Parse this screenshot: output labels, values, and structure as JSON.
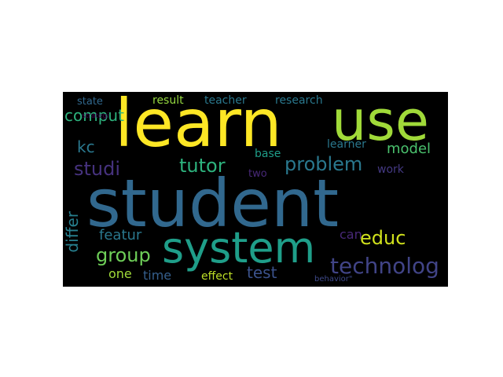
{
  "background": "#000000",
  "words": [
    {
      "id": "student",
      "text": "student",
      "color": "#31688e"
    },
    {
      "id": "learn",
      "text": "learn",
      "color": "#fde725"
    },
    {
      "id": "use",
      "text": "use",
      "color": "#a0da39"
    },
    {
      "id": "system",
      "text": "system",
      "color": "#1f9e89"
    },
    {
      "id": "technolog",
      "text": "technolog",
      "color": "#414487"
    },
    {
      "id": "problem",
      "text": "problem",
      "color": "#2a788e"
    },
    {
      "id": "tutor",
      "text": "tutor",
      "color": "#2db27d"
    },
    {
      "id": "studi",
      "text": "studi",
      "color": "#46327e"
    },
    {
      "id": "group",
      "text": "group",
      "color": "#6ece58"
    },
    {
      "id": "educ",
      "text": "educ",
      "color": "#d0e11c"
    },
    {
      "id": "comput",
      "text": "comput",
      "color": "#2db27d"
    },
    {
      "id": "model",
      "text": "model",
      "color": "#4ac16d"
    },
    {
      "id": "kc",
      "text": "kc",
      "color": "#2a788e"
    },
    {
      "id": "featur",
      "text": "featur",
      "color": "#2a788e"
    },
    {
      "id": "differ",
      "text": "differ",
      "color": "#277f8e"
    },
    {
      "id": "test",
      "text": "test",
      "color": "#3b528b"
    },
    {
      "id": "time",
      "text": "time",
      "color": "#355f8d"
    },
    {
      "id": "one",
      "text": "one",
      "color": "#a0da39"
    },
    {
      "id": "effect",
      "text": "effect",
      "color": "#bddf26"
    },
    {
      "id": "can",
      "text": "can",
      "color": "#482878"
    },
    {
      "id": "work",
      "text": "work",
      "color": "#443983"
    },
    {
      "id": "two",
      "text": "two",
      "color": "#482878"
    },
    {
      "id": "base",
      "text": "base",
      "color": "#1f9e89"
    },
    {
      "id": "learner",
      "text": "learner",
      "color": "#2a788e"
    },
    {
      "id": "result",
      "text": "result",
      "color": "#95d840"
    },
    {
      "id": "teacher",
      "text": "teacher",
      "color": "#2a788e"
    },
    {
      "id": "research",
      "text": "research",
      "color": "#2a788e"
    },
    {
      "id": "state",
      "text": "state",
      "color": "#31688e"
    },
    {
      "id": "strategi",
      "text": "strategi",
      "color": "#440154"
    },
    {
      "id": "behavior",
      "text": "behavior\"",
      "color": "#3e4989"
    }
  ]
}
